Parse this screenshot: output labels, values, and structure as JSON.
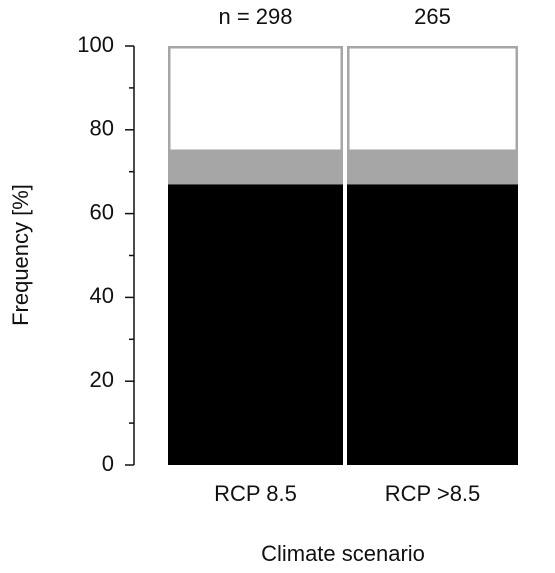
{
  "chart_data": {
    "type": "stacked_bar",
    "categories": [
      "RCP 8.5",
      "RCP >8.5"
    ],
    "annotations": [
      "n = 298",
      "265"
    ],
    "series": [
      {
        "color": "#000000",
        "values": [
          67,
          67
        ]
      },
      {
        "color": "#a6a6a6",
        "values": [
          8,
          8
        ]
      },
      {
        "color": "#ffffff",
        "values": [
          25,
          25
        ]
      }
    ],
    "ylabel": "Frequency [%]",
    "xlabel": "Climate scenario",
    "ylim": [
      0,
      100
    ],
    "yticks": [
      0,
      20,
      40,
      60,
      80,
      100
    ],
    "yminorticks": [
      10,
      30,
      50,
      70,
      90
    ]
  }
}
